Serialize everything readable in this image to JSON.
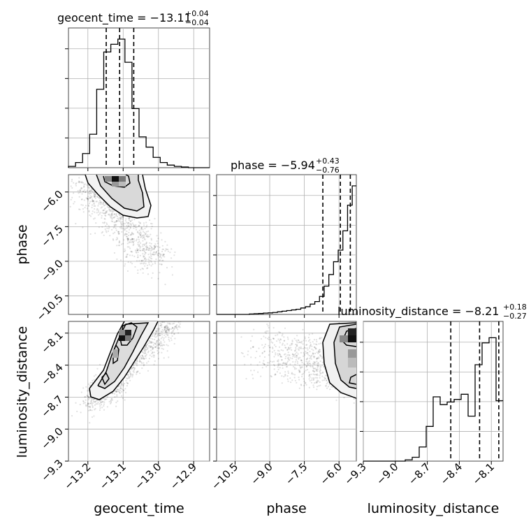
{
  "chart_data": {
    "type": "corner",
    "parameters": [
      "geocent_time",
      "phase",
      "luminosity_distance"
    ],
    "axis_labels": {
      "geocent_time": "geocent_time",
      "phase": "phase",
      "luminosity_distance": "luminosity_distance"
    },
    "ranges": {
      "geocent_time": [
        -13.255,
        -12.855
      ],
      "phase": [
        -11.3,
        -5.25
      ],
      "luminosity_distance": [
        -9.3,
        -7.99
      ]
    },
    "ticks": {
      "geocent_time": {
        "values": [
          -13.2,
          -13.1,
          -13.0,
          -12.9
        ],
        "labels": [
          "−13.2",
          "−13.1",
          "−13.0",
          "−12.9"
        ]
      },
      "phase": {
        "values": [
          -10.5,
          -9.0,
          -7.5,
          -6.0
        ],
        "labels": [
          "−10.5",
          "−9.0",
          "−7.5",
          "−6.0"
        ]
      },
      "luminosity_distance": {
        "values": [
          -9.3,
          -9.0,
          -8.7,
          -8.4,
          -8.1
        ],
        "labels": [
          "−9.3",
          "−9.0",
          "−8.7",
          "−8.4",
          "−8.1"
        ]
      }
    },
    "titles": {
      "geocent_time": {
        "prefix": "geocent_time = ",
        "median": "−13.11",
        "plus": "+0.04",
        "minus": "−0.04"
      },
      "phase": {
        "prefix": "phase = ",
        "median": "−5.94",
        "plus": "+0.43",
        "minus": "−0.76"
      },
      "luminosity_distance": {
        "prefix": "luminosity_distance = ",
        "median": "−8.21",
        "plus": "+0.18",
        "minus": "−0.27"
      }
    },
    "quantiles": {
      "geocent_time": [
        -13.148,
        -13.11,
        -13.07
      ],
      "phase": [
        -6.7,
        -5.94,
        -5.51
      ],
      "luminosity_distance": [
        -8.48,
        -8.21,
        -8.03
      ]
    },
    "histograms": {
      "geocent_time": {
        "edges": [
          -13.255,
          -13.235,
          -13.215,
          -13.195,
          -13.175,
          -13.155,
          -13.135,
          -13.115,
          -13.095,
          -13.075,
          -13.055,
          -13.035,
          -13.015,
          -12.995,
          -12.975,
          -12.955,
          -12.935,
          -12.915,
          -12.895,
          -12.875,
          -12.855
        ],
        "counts": [
          0.01,
          0.04,
          0.11,
          0.26,
          0.61,
          0.9,
          0.96,
          1.0,
          0.82,
          0.46,
          0.24,
          0.16,
          0.08,
          0.04,
          0.02,
          0.01,
          0.005,
          0.0,
          0.0,
          0.0
        ]
      },
      "phase": {
        "edges": [
          -11.3,
          -11.0975,
          -10.895,
          -10.6925,
          -10.49,
          -10.2875,
          -10.085,
          -9.8825,
          -9.68,
          -9.4775,
          -9.275,
          -9.0725,
          -8.87,
          -8.6675,
          -8.465,
          -8.2625,
          -8.06,
          -7.8575,
          -7.655,
          -7.4525,
          -7.25,
          -7.0475,
          -6.845,
          -6.6425,
          -6.44,
          -6.2375,
          -6.035,
          -5.8325,
          -5.63,
          -5.4275,
          -5.25
        ],
        "counts": [
          0.0,
          0.0,
          0.0,
          0.0,
          0.0,
          0.0,
          0.0,
          0.003,
          0.005,
          0.007,
          0.01,
          0.012,
          0.015,
          0.02,
          0.025,
          0.03,
          0.035,
          0.04,
          0.05,
          0.06,
          0.08,
          0.1,
          0.14,
          0.22,
          0.31,
          0.41,
          0.5,
          0.65,
          0.85,
          1.0
        ]
      },
      "luminosity_distance": {
        "edges": [
          -9.3,
          -9.2345,
          -9.169,
          -9.1035,
          -9.038,
          -8.9725,
          -8.907,
          -8.8415,
          -8.776,
          -8.7105,
          -8.645,
          -8.5795,
          -8.514,
          -8.4485,
          -8.383,
          -8.3175,
          -8.252,
          -8.1865,
          -8.121,
          -8.0555,
          -7.99
        ],
        "counts": [
          0.0,
          0.0,
          0.0,
          0.0,
          0.0,
          0.0,
          0.01,
          0.03,
          0.11,
          0.27,
          0.5,
          0.44,
          0.46,
          0.48,
          0.52,
          0.35,
          0.75,
          0.92,
          0.96,
          0.47
        ]
      }
    },
    "contour_levels": 3,
    "grid": true
  }
}
